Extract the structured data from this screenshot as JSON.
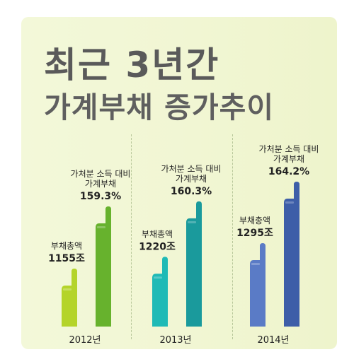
{
  "title_line1": "최근 3년간",
  "title_line2": "가계부채 증가추이",
  "chart_data": {
    "type": "bar",
    "categories": [
      "2012년",
      "2013년",
      "2014년"
    ],
    "series": [
      {
        "name": "부채총액",
        "values": [
          1155,
          1220,
          1295
        ],
        "labels": [
          "1155조",
          "1220조",
          "1295조"
        ]
      },
      {
        "name": "가처분 소득 대비 가계부채",
        "values": [
          159.3,
          160.3,
          164.2
        ],
        "labels": [
          "159.3%",
          "160.3%",
          "164.2%"
        ]
      }
    ],
    "series_label_lines": [
      [
        "부채총액"
      ],
      [
        "가처분 소득 대비",
        "가계부채"
      ]
    ],
    "colors": [
      {
        "light": "#b4d42a",
        "dark": "#67b22d"
      },
      {
        "light": "#1fbab6",
        "dark": "#1a9a9c"
      },
      {
        "light": "#5a7bc6",
        "dark": "#3d5ea8"
      }
    ]
  }
}
